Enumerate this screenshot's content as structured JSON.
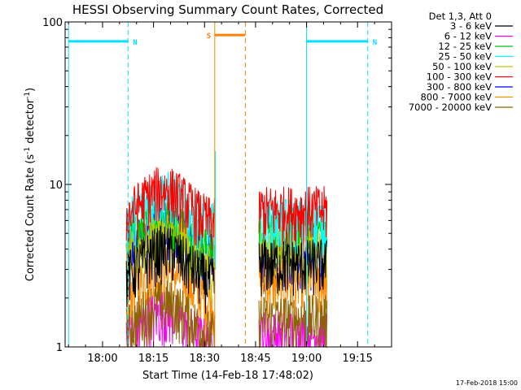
{
  "chart_data": {
    "type": "line",
    "title": "HESSI Observing Summary Count Rates, Corrected",
    "xlabel": "Start Time (14-Feb-18 17:48:02)",
    "ylabel_main": "Corrected Count Rate (s",
    "ylabel_sup1": "-1",
    "ylabel_mid": " detector",
    "ylabel_sup2": "-1",
    "ylabel_end": ")",
    "yscale": "log",
    "ylim": [
      1,
      100
    ],
    "xlim_minutes": [
      -11,
      85
    ],
    "x_ticks": [
      {
        "label": "18:00",
        "t": 0
      },
      {
        "label": "18:15",
        "t": 15
      },
      {
        "label": "18:30",
        "t": 30
      },
      {
        "label": "18:45",
        "t": 45
      },
      {
        "label": "19:00",
        "t": 60
      },
      {
        "label": "19:15",
        "t": 75
      }
    ],
    "y_ticks": [
      {
        "label": "1",
        "value": 1
      },
      {
        "label": "10",
        "value": 10
      },
      {
        "label": "100",
        "value": 100
      }
    ],
    "legend_header": "Det 1,3, Att 0",
    "legend_position": "right",
    "series": [
      {
        "name": "3 - 6 keV",
        "color": "#000000",
        "level1": 3.2,
        "level2": 3.3
      },
      {
        "name": "6 - 12 keV",
        "color": "#ff00ff",
        "level1": 1.3,
        "level2": 1.2
      },
      {
        "name": "12 - 25 keV",
        "color": "#00c800",
        "level1": 5.0,
        "level2": 5.2
      },
      {
        "name": "25 - 50 keV",
        "color": "#00ffff",
        "level1": 7.0,
        "level2": 6.0
      },
      {
        "name": "50 - 100 keV",
        "color": "#c8c800",
        "level1": 4.0,
        "level2": 4.0
      },
      {
        "name": "100 - 300 keV",
        "color": "#ff0000",
        "level1": 7.5,
        "level2": 7.0
      },
      {
        "name": "300 - 800 keV",
        "color": "#0000ff",
        "level1": 4.5,
        "level2": 3.5
      },
      {
        "name": "800 - 7000 keV",
        "color": "#ff8c00",
        "level1": 2.4,
        "level2": 2.5
      },
      {
        "name": "7000 - 20000 keV",
        "color": "#8c6400",
        "level1": 1.5,
        "level2": 1.5
      }
    ],
    "data_segments": [
      [
        7,
        33
      ],
      [
        46,
        66
      ]
    ],
    "flags": [
      {
        "label": "N",
        "color": "#00e0ff",
        "start": -10,
        "end": 7.5,
        "level": 76
      },
      {
        "label": "N",
        "color": "#00e0ff",
        "start": 60,
        "end": 78,
        "level": 76
      },
      {
        "label": "S",
        "color": "#ff8000",
        "start": 33,
        "end": 42,
        "level": 83
      }
    ],
    "vlines": [
      {
        "color": "#00e0ff",
        "t": -10,
        "style": "solid"
      },
      {
        "color": "#00e0ff",
        "t": 7.5,
        "style": "dashed"
      },
      {
        "color": "#00e0ff",
        "t": 60,
        "style": "solid"
      },
      {
        "color": "#00e0ff",
        "t": 78,
        "style": "dashed"
      },
      {
        "color": "#ff8000",
        "t": 33,
        "style": "solid"
      },
      {
        "color": "#ff8000",
        "t": 42,
        "style": "dashed"
      }
    ],
    "spike": {
      "t": 33.2,
      "value": 16
    },
    "stamp": "17-Feb-2018 15:00"
  }
}
